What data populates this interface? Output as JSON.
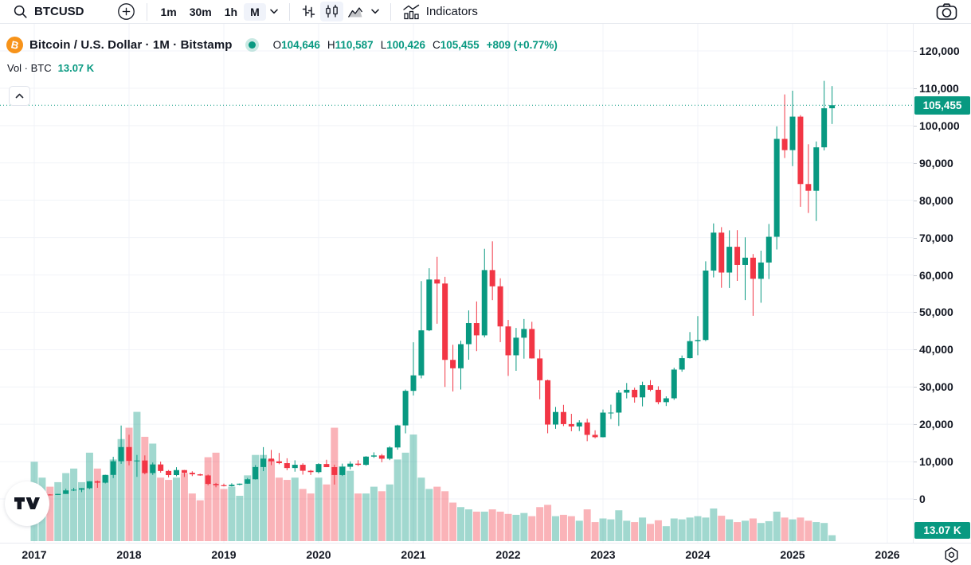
{
  "toolbar": {
    "symbol": "BTCUSD",
    "timeframes": [
      "1m",
      "30m",
      "1h",
      "M"
    ],
    "active_timeframe": "M",
    "indicators_label": "Indicators"
  },
  "legend": {
    "title": "Bitcoin / U.S. Dollar · 1M · Bitstamp",
    "o_label": "O",
    "o_value": "104,646",
    "h_label": "H",
    "h_value": "110,587",
    "l_label": "L",
    "l_value": "100,426",
    "c_label": "C",
    "c_value": "105,455",
    "change_text": "+809 (+0.77%)",
    "vol_label": "Vol · BTC",
    "vol_value": "13.07 K"
  },
  "price_axis": {
    "price_badge": "105,455",
    "volume_badge": "13.07 K",
    "ticks": [
      {
        "value": 120000,
        "label": "120,000"
      },
      {
        "value": 110000,
        "label": "110,000"
      },
      {
        "value": 100000,
        "label": "100,000"
      },
      {
        "value": 90000,
        "label": "90,000"
      },
      {
        "value": 80000,
        "label": "80,000"
      },
      {
        "value": 70000,
        "label": "70,000"
      },
      {
        "value": 60000,
        "label": "60,000"
      },
      {
        "value": 50000,
        "label": "50,000"
      },
      {
        "value": 40000,
        "label": "40,000"
      },
      {
        "value": 30000,
        "label": "30,000"
      },
      {
        "value": 20000,
        "label": "20,000"
      },
      {
        "value": 10000,
        "label": "10,000"
      },
      {
        "value": 0,
        "label": "0"
      }
    ]
  },
  "time_axis": {
    "ticks": [
      {
        "value": 2017,
        "label": "2017"
      },
      {
        "value": 2018,
        "label": "2018"
      },
      {
        "value": 2019,
        "label": "2019"
      },
      {
        "value": 2020,
        "label": "2020"
      },
      {
        "value": 2021,
        "label": "2021"
      },
      {
        "value": 2022,
        "label": "2022"
      },
      {
        "value": 2023,
        "label": "2023"
      },
      {
        "value": 2024,
        "label": "2024"
      },
      {
        "value": 2025,
        "label": "2025"
      },
      {
        "value": 2026,
        "label": "2026"
      }
    ]
  },
  "colors": {
    "up_green": "#089981",
    "down_red": "#F23645",
    "volume_up": "rgba(8,153,129,0.38)",
    "volume_down": "rgba(242,54,69,0.38)",
    "badge_bg": "#089981",
    "bitcoin_orange": "#F7931A",
    "grid": "#f1f3f8",
    "text_dark": "#131722"
  },
  "chart_data": {
    "type": "candlestick",
    "title": "Bitcoin / U.S. Dollar · 1M · Bitstamp",
    "symbol": "BTCUSD",
    "interval": "1M",
    "exchange": "Bitstamp",
    "ylim": [
      0,
      120000
    ],
    "x_range_years": [
      2017,
      2026
    ],
    "grid": true,
    "last": {
      "open": 104646,
      "high": 110587,
      "low": 100426,
      "close": 105455,
      "change": 809,
      "change_pct": 0.77,
      "volume_k_btc": 13.07
    },
    "volume_units": "K BTC (estimated from bar heights)",
    "columns": [
      "month",
      "open",
      "high",
      "low",
      "close",
      "volume_k_btc"
    ],
    "candles": [
      [
        "2017-01",
        963,
        1191,
        784,
        965,
        175
      ],
      [
        "2017-02",
        965,
        1220,
        930,
        1190,
        140
      ],
      [
        "2017-03",
        1190,
        1290,
        940,
        1080,
        120
      ],
      [
        "2017-04",
        1080,
        1340,
        1060,
        1350,
        130
      ],
      [
        "2017-05",
        1350,
        2760,
        1340,
        2290,
        150
      ],
      [
        "2017-06",
        2290,
        2990,
        2120,
        2480,
        160
      ],
      [
        "2017-07",
        2480,
        2930,
        1850,
        2875,
        130
      ],
      [
        "2017-08",
        2875,
        4750,
        2640,
        4735,
        195
      ],
      [
        "2017-09",
        4735,
        4940,
        2980,
        4360,
        160
      ],
      [
        "2017-10",
        4360,
        6480,
        4160,
        6440,
        145
      ],
      [
        "2017-11",
        6440,
        11300,
        5590,
        10100,
        180
      ],
      [
        "2017-12",
        10100,
        19666,
        9400,
        13900,
        225
      ],
      [
        "2018-01",
        13900,
        17200,
        9000,
        10200,
        250
      ],
      [
        "2018-02",
        10200,
        11790,
        5920,
        10300,
        285
      ],
      [
        "2018-03",
        10300,
        11660,
        6600,
        6930,
        230
      ],
      [
        "2018-04",
        6930,
        9760,
        6430,
        9240,
        215
      ],
      [
        "2018-05",
        9240,
        9990,
        7040,
        7490,
        140
      ],
      [
        "2018-06",
        7490,
        7750,
        5780,
        6390,
        135
      ],
      [
        "2018-07",
        6390,
        8500,
        6070,
        7730,
        140
      ],
      [
        "2018-08",
        7730,
        7770,
        5880,
        7010,
        150
      ],
      [
        "2018-09",
        7010,
        7410,
        6120,
        6600,
        105
      ],
      [
        "2018-10",
        6600,
        6780,
        6200,
        6300,
        90
      ],
      [
        "2018-11",
        6300,
        6540,
        3650,
        4020,
        185
      ],
      [
        "2018-12",
        4020,
        4300,
        3130,
        3690,
        195
      ],
      [
        "2019-01",
        3690,
        4110,
        3350,
        3430,
        115
      ],
      [
        "2019-02",
        3430,
        4200,
        3330,
        3810,
        120
      ],
      [
        "2019-03",
        3810,
        4140,
        3660,
        4090,
        100
      ],
      [
        "2019-04",
        4090,
        5620,
        4050,
        5270,
        145
      ],
      [
        "2019-05",
        5270,
        9070,
        5200,
        8550,
        190
      ],
      [
        "2019-06",
        8550,
        13880,
        7450,
        10800,
        190
      ],
      [
        "2019-07",
        10800,
        13130,
        9070,
        10080,
        180
      ],
      [
        "2019-08",
        10080,
        12320,
        9300,
        9590,
        140
      ],
      [
        "2019-09",
        9590,
        10900,
        7700,
        8280,
        135
      ],
      [
        "2019-10",
        8280,
        10350,
        7300,
        9150,
        140
      ],
      [
        "2019-11",
        9150,
        9550,
        6515,
        7550,
        115
      ],
      [
        "2019-12",
        7550,
        7750,
        6425,
        7190,
        105
      ],
      [
        "2020-01",
        7190,
        9570,
        6850,
        9350,
        140
      ],
      [
        "2020-02",
        9350,
        10500,
        8520,
        8520,
        125
      ],
      [
        "2020-03",
        8520,
        9180,
        3850,
        6410,
        250
      ],
      [
        "2020-04",
        6410,
        9460,
        6150,
        8620,
        165
      ],
      [
        "2020-05",
        8620,
        10070,
        7920,
        9450,
        155
      ],
      [
        "2020-06",
        9450,
        10380,
        8820,
        9140,
        105
      ],
      [
        "2020-07",
        9140,
        11450,
        8900,
        11340,
        105
      ],
      [
        "2020-08",
        11340,
        12480,
        11000,
        11650,
        120
      ],
      [
        "2020-09",
        11650,
        12050,
        9820,
        10780,
        110
      ],
      [
        "2020-10",
        10780,
        14100,
        10400,
        13790,
        125
      ],
      [
        "2020-11",
        13790,
        19880,
        13200,
        19700,
        180
      ],
      [
        "2020-12",
        19700,
        29300,
        17570,
        28950,
        195
      ],
      [
        "2021-01",
        28950,
        41950,
        27700,
        33100,
        235
      ],
      [
        "2021-02",
        33100,
        58350,
        32300,
        45160,
        140
      ],
      [
        "2021-03",
        45160,
        61800,
        44950,
        58770,
        115
      ],
      [
        "2021-04",
        58770,
        64850,
        46930,
        57700,
        120
      ],
      [
        "2021-05",
        57700,
        59500,
        30000,
        37250,
        110
      ],
      [
        "2021-06",
        37250,
        41300,
        28800,
        35000,
        85
      ],
      [
        "2021-07",
        35000,
        42400,
        29300,
        41460,
        75
      ],
      [
        "2021-08",
        41460,
        50500,
        37300,
        47100,
        70
      ],
      [
        "2021-09",
        47100,
        52900,
        39600,
        43820,
        65
      ],
      [
        "2021-10",
        43820,
        66990,
        43280,
        61300,
        65
      ],
      [
        "2021-11",
        61300,
        69000,
        53250,
        56950,
        70
      ],
      [
        "2021-12",
        56950,
        59100,
        42000,
        46210,
        65
      ],
      [
        "2022-01",
        46210,
        47950,
        32950,
        38480,
        60
      ],
      [
        "2022-02",
        38480,
        45800,
        34320,
        43190,
        58
      ],
      [
        "2022-03",
        43190,
        48200,
        37580,
        45530,
        62
      ],
      [
        "2022-04",
        45530,
        47450,
        37600,
        37640,
        55
      ],
      [
        "2022-05",
        37640,
        40000,
        26700,
        31790,
        75
      ],
      [
        "2022-06",
        31790,
        31960,
        17590,
        19925,
        80
      ],
      [
        "2022-07",
        19925,
        24650,
        18780,
        23290,
        55
      ],
      [
        "2022-08",
        23290,
        25200,
        19520,
        20050,
        58
      ],
      [
        "2022-09",
        20050,
        22800,
        18125,
        19425,
        55
      ],
      [
        "2022-10",
        19425,
        21080,
        18190,
        20490,
        45
      ],
      [
        "2022-11",
        20490,
        21480,
        15480,
        17165,
        70
      ],
      [
        "2022-12",
        17165,
        18390,
        16250,
        16540,
        42
      ],
      [
        "2023-01",
        16540,
        23960,
        16490,
        23125,
        50
      ],
      [
        "2023-02",
        23125,
        25250,
        21400,
        23130,
        48
      ],
      [
        "2023-03",
        23130,
        29180,
        19550,
        28470,
        68
      ],
      [
        "2023-04",
        28470,
        31050,
        26940,
        29230,
        45
      ],
      [
        "2023-05",
        29230,
        29820,
        25800,
        27210,
        42
      ],
      [
        "2023-06",
        27210,
        31400,
        24800,
        30470,
        52
      ],
      [
        "2023-07",
        30470,
        31800,
        28860,
        29230,
        38
      ],
      [
        "2023-08",
        29230,
        30180,
        25350,
        25930,
        46
      ],
      [
        "2023-09",
        25930,
        27480,
        24900,
        26960,
        33
      ],
      [
        "2023-10",
        26960,
        35150,
        26540,
        34650,
        50
      ],
      [
        "2023-11",
        34650,
        38420,
        34080,
        37710,
        48
      ],
      [
        "2023-12",
        37710,
        44700,
        37620,
        42270,
        52
      ],
      [
        "2024-01",
        42270,
        48970,
        38500,
        42580,
        55
      ],
      [
        "2024-02",
        42580,
        63650,
        42270,
        61170,
        52
      ],
      [
        "2024-03",
        61170,
        73800,
        59340,
        71330,
        72
      ],
      [
        "2024-04",
        71330,
        72800,
        56550,
        60640,
        56
      ],
      [
        "2024-05",
        60640,
        71950,
        56500,
        67540,
        48
      ],
      [
        "2024-06",
        67540,
        72000,
        58400,
        62670,
        42
      ],
      [
        "2024-07",
        62670,
        70080,
        53250,
        64620,
        45
      ],
      [
        "2024-08",
        64620,
        65600,
        49050,
        58970,
        50
      ],
      [
        "2024-09",
        58970,
        66500,
        52550,
        63330,
        40
      ],
      [
        "2024-10",
        63330,
        73650,
        58900,
        70220,
        44
      ],
      [
        "2024-11",
        70220,
        99800,
        66830,
        96440,
        65
      ],
      [
        "2024-12",
        96440,
        108350,
        91320,
        93430,
        52
      ],
      [
        "2025-01",
        93430,
        109350,
        89160,
        102400,
        48
      ],
      [
        "2025-02",
        102400,
        102800,
        78250,
        84350,
        52
      ],
      [
        "2025-03",
        84350,
        95000,
        76600,
        82550,
        45
      ],
      [
        "2025-04",
        82550,
        95750,
        74450,
        94180,
        42
      ],
      [
        "2025-05",
        94180,
        111980,
        93350,
        104640,
        40
      ],
      [
        "2025-06",
        104646,
        110587,
        100426,
        105455,
        13.07
      ]
    ]
  }
}
